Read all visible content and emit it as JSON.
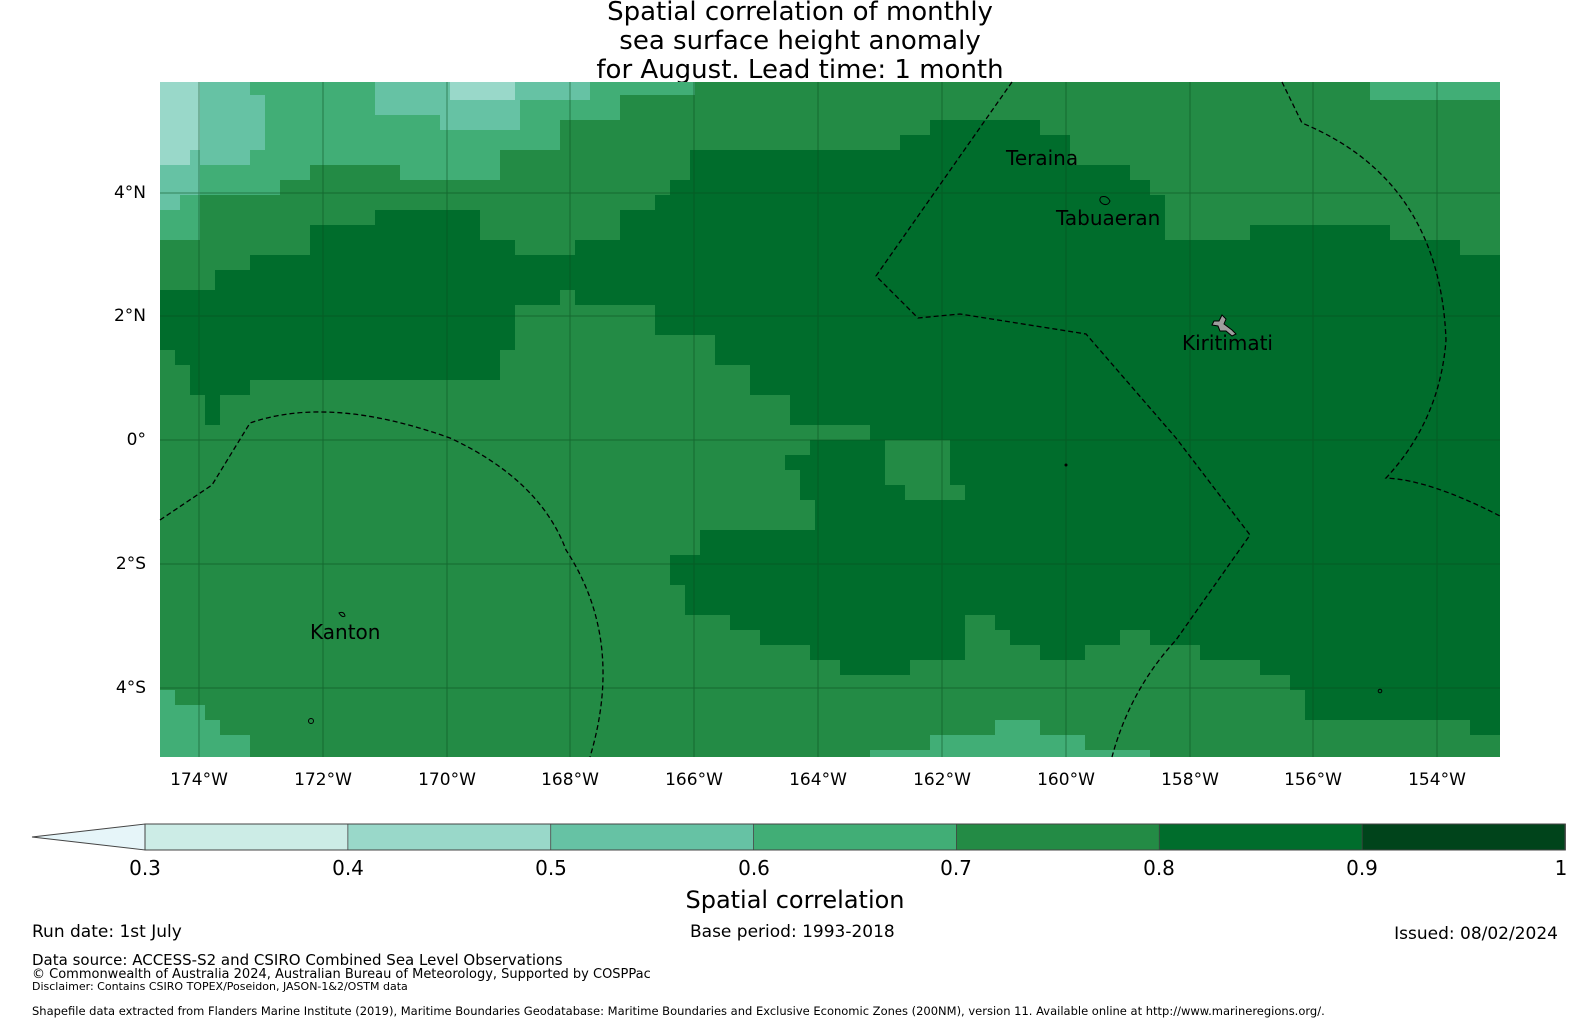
{
  "title_lines": [
    "Spatial correlation of monthly",
    "sea surface height anomaly",
    "for August. Lead time: 1 month"
  ],
  "map": {
    "lon_ticks": [
      "174°W",
      "172°W",
      "170°W",
      "168°W",
      "166°W",
      "164°W",
      "162°W",
      "160°W",
      "158°W",
      "156°W",
      "154°W"
    ],
    "lat_ticks": [
      "4°N",
      "2°N",
      "0°",
      "2°S",
      "4°S"
    ],
    "places": {
      "teraina": "Teraina",
      "tabuaeran": "Tabuaeran",
      "kiritimati": "Kiritimati",
      "kanton": "Kanton"
    }
  },
  "colorbar": {
    "label": "Spatial correlation",
    "ticks": [
      "0.3",
      "0.4",
      "0.5",
      "0.6",
      "0.7",
      "0.8",
      "0.9",
      "1"
    ],
    "colors": [
      "#e6f5f9",
      "#ccece6",
      "#99d8c9",
      "#66c2a4",
      "#41ae76",
      "#238b45",
      "#006d2c",
      "#00441b"
    ],
    "extend": "min"
  },
  "footer": {
    "run_date": "Run date: 1st July",
    "base_period": "Base period: 1993-2018",
    "issued": "Issued: 08/02/2024",
    "data_source": "Data source: ACCESS-S2 and CSIRO Combined Sea Level Observations",
    "copyright": "© Commonwealth of Australia 2024, Australian Bureau of Meteorology, Supported by COSPPac",
    "disclaimer": "Disclaimer: Contains CSIRO TOPEX/Poseidon, JASON-1&2/OSTM data",
    "shapefile": "Shapefile data extracted from Flanders Marine Institute (2019), Maritime Boundaries Geodatabase: Maritime Boundaries and Exclusive Economic Zones (200NM), version 11. Available online at http://www.marineregions.org/."
  }
}
